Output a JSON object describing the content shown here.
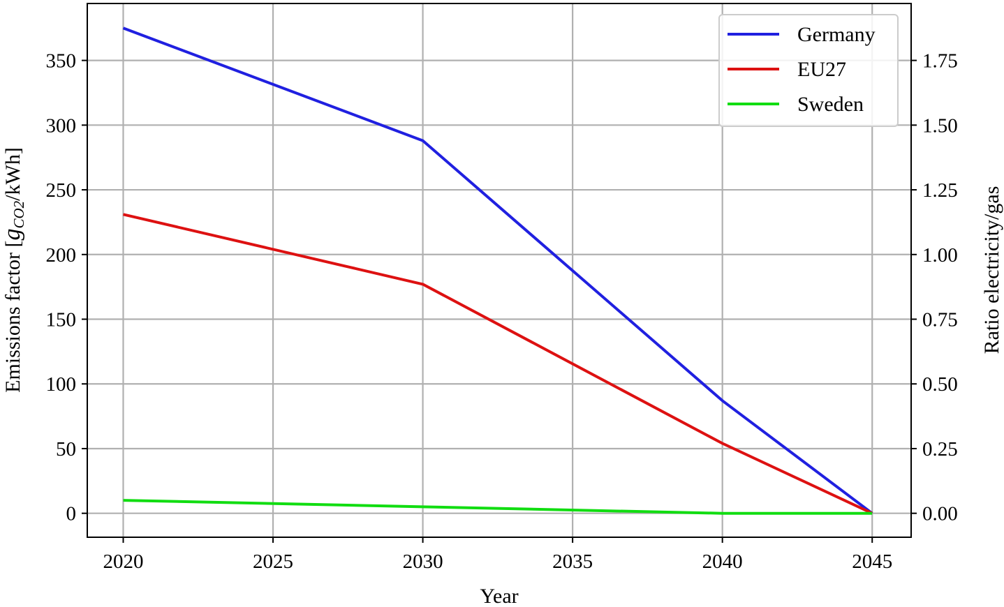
{
  "chart_data": {
    "type": "line",
    "x": [
      2020,
      2030,
      2040,
      2045
    ],
    "series": [
      {
        "name": "Germany",
        "color": "#2020e0",
        "values": [
          375,
          288,
          87,
          0
        ]
      },
      {
        "name": "EU27",
        "color": "#dd1111",
        "values": [
          231,
          177,
          54,
          0
        ]
      },
      {
        "name": "Sweden",
        "color": "#11dd11",
        "values": [
          10,
          5,
          0,
          0
        ]
      }
    ],
    "xlabel": "Year",
    "ylabel_main": "Emissions factor [",
    "ylabel_sym": "g",
    "ylabel_sub": "CO2",
    "ylabel_tail": "/kWh]",
    "y2label": "Ratio electricity/gas",
    "xlim": [
      2018.8,
      2046.3
    ],
    "ylim": [
      -18.5,
      394
    ],
    "y2lim": [
      -0.0925,
      1.97
    ],
    "x_ticks": [
      "2020",
      "2025",
      "2030",
      "2035",
      "2040",
      "2045"
    ],
    "y_ticks": [
      "0",
      "50",
      "100",
      "150",
      "200",
      "250",
      "300",
      "350"
    ],
    "y2_ticks": [
      "0.00",
      "0.25",
      "0.50",
      "0.75",
      "1.00",
      "1.25",
      "1.50",
      "1.75"
    ],
    "grid": true,
    "legend_position": "top-right"
  }
}
